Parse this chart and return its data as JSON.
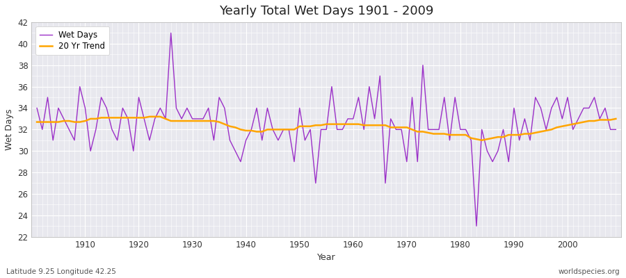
{
  "title": "Yearly Total Wet Days 1901 - 2009",
  "xlabel": "Year",
  "ylabel": "Wet Days",
  "subtitle_left": "Latitude 9.25 Longitude 42.25",
  "subtitle_right": "worldspecies.org",
  "ylim": [
    22,
    42
  ],
  "yticks": [
    22,
    24,
    26,
    28,
    30,
    32,
    34,
    36,
    38,
    40,
    42
  ],
  "xlim": [
    1901,
    2009
  ],
  "xticks": [
    1910,
    1920,
    1930,
    1940,
    1950,
    1960,
    1970,
    1980,
    1990,
    2000
  ],
  "line_color": "#9B30C8",
  "trend_color": "#FFA500",
  "bg_color": "#E8E8EE",
  "wet_days": {
    "1901": 34,
    "1902": 32,
    "1903": 35,
    "1904": 31,
    "1905": 34,
    "1906": 33,
    "1907": 32,
    "1908": 31,
    "1909": 36,
    "1910": 34,
    "1911": 30,
    "1912": 32,
    "1913": 35,
    "1914": 34,
    "1915": 32,
    "1916": 31,
    "1917": 34,
    "1918": 33,
    "1919": 30,
    "1920": 35,
    "1921": 33,
    "1922": 31,
    "1923": 33,
    "1924": 34,
    "1925": 33,
    "1926": 41,
    "1927": 34,
    "1928": 33,
    "1929": 34,
    "1930": 33,
    "1931": 33,
    "1932": 33,
    "1933": 34,
    "1934": 31,
    "1935": 35,
    "1936": 34,
    "1937": 31,
    "1938": 30,
    "1939": 29,
    "1940": 31,
    "1941": 32,
    "1942": 34,
    "1943": 31,
    "1944": 34,
    "1945": 32,
    "1946": 31,
    "1947": 32,
    "1948": 32,
    "1949": 29,
    "1950": 34,
    "1951": 31,
    "1952": 32,
    "1953": 27,
    "1954": 32,
    "1955": 32,
    "1956": 36,
    "1957": 32,
    "1958": 32,
    "1959": 33,
    "1960": 33,
    "1961": 35,
    "1962": 32,
    "1963": 36,
    "1964": 33,
    "1965": 37,
    "1966": 27,
    "1967": 33,
    "1968": 32,
    "1969": 32,
    "1970": 29,
    "1971": 35,
    "1972": 29,
    "1973": 38,
    "1974": 32,
    "1975": 32,
    "1976": 32,
    "1977": 35,
    "1978": 31,
    "1979": 35,
    "1980": 32,
    "1981": 32,
    "1982": 31,
    "1983": 23,
    "1984": 32,
    "1985": 30,
    "1986": 29,
    "1987": 30,
    "1988": 32,
    "1989": 29,
    "1990": 34,
    "1991": 31,
    "1992": 33,
    "1993": 31,
    "1994": 35,
    "1995": 34,
    "1996": 32,
    "1997": 34,
    "1998": 35,
    "1999": 33,
    "2000": 35,
    "2001": 32,
    "2002": 33,
    "2003": 34,
    "2004": 34,
    "2005": 35,
    "2006": 33,
    "2007": 34,
    "2008": 32,
    "2009": 32
  },
  "trend_days": {
    "1901": 32.7,
    "1902": 32.7,
    "1903": 32.7,
    "1904": 32.7,
    "1905": 32.7,
    "1906": 32.8,
    "1907": 32.8,
    "1908": 32.7,
    "1909": 32.7,
    "1910": 32.8,
    "1911": 33.0,
    "1912": 33.0,
    "1913": 33.1,
    "1914": 33.1,
    "1915": 33.1,
    "1916": 33.1,
    "1917": 33.1,
    "1918": 33.1,
    "1919": 33.1,
    "1920": 33.1,
    "1921": 33.1,
    "1922": 33.2,
    "1923": 33.2,
    "1924": 33.2,
    "1925": 33.0,
    "1926": 32.8,
    "1927": 32.8,
    "1928": 32.8,
    "1929": 32.8,
    "1930": 32.8,
    "1931": 32.8,
    "1932": 32.8,
    "1933": 32.8,
    "1934": 32.8,
    "1935": 32.7,
    "1936": 32.5,
    "1937": 32.3,
    "1938": 32.2,
    "1939": 32.0,
    "1940": 31.9,
    "1941": 31.9,
    "1942": 31.8,
    "1943": 31.8,
    "1944": 32.0,
    "1945": 32.0,
    "1946": 32.0,
    "1947": 32.0,
    "1948": 32.0,
    "1949": 32.0,
    "1950": 32.3,
    "1951": 32.3,
    "1952": 32.3,
    "1953": 32.4,
    "1954": 32.4,
    "1955": 32.5,
    "1956": 32.5,
    "1957": 32.5,
    "1958": 32.5,
    "1959": 32.5,
    "1960": 32.5,
    "1961": 32.5,
    "1962": 32.4,
    "1963": 32.4,
    "1964": 32.4,
    "1965": 32.4,
    "1966": 32.4,
    "1967": 32.2,
    "1968": 32.2,
    "1969": 32.2,
    "1970": 32.2,
    "1971": 32.0,
    "1972": 31.8,
    "1973": 31.8,
    "1974": 31.7,
    "1975": 31.6,
    "1976": 31.6,
    "1977": 31.6,
    "1978": 31.5,
    "1979": 31.5,
    "1980": 31.5,
    "1981": 31.5,
    "1982": 31.2,
    "1983": 31.1,
    "1984": 31.0,
    "1985": 31.1,
    "1986": 31.2,
    "1987": 31.3,
    "1988": 31.3,
    "1989": 31.5,
    "1990": 31.5,
    "1991": 31.5,
    "1992": 31.6,
    "1993": 31.6,
    "1994": 31.7,
    "1995": 31.8,
    "1996": 31.9,
    "1997": 32.0,
    "1998": 32.2,
    "1999": 32.3,
    "2000": 32.4,
    "2001": 32.5,
    "2002": 32.6,
    "2003": 32.7,
    "2004": 32.8,
    "2005": 32.8,
    "2006": 32.9,
    "2007": 32.9,
    "2008": 32.9,
    "2009": 33.0
  }
}
